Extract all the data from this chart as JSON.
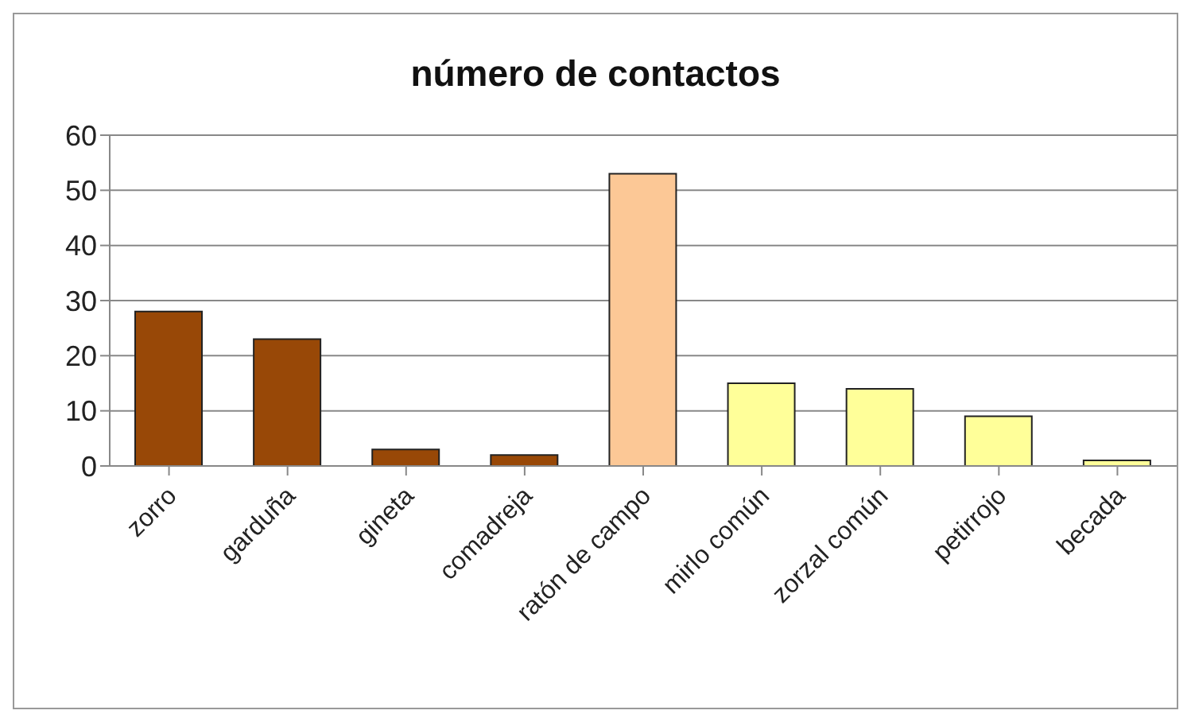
{
  "chart_data": {
    "type": "bar",
    "title": "número de contactos",
    "categories": [
      "zorro",
      "garduña",
      "gineta",
      "comadreja",
      "ratón de campo",
      "mirlo común",
      "zorzal común",
      "petirrojo",
      "becada"
    ],
    "values": [
      28,
      23,
      3,
      2,
      53,
      15,
      14,
      9,
      1
    ],
    "colors": [
      "#984807",
      "#984807",
      "#984807",
      "#984807",
      "#fcc896",
      "#ffff99",
      "#ffff99",
      "#ffff99",
      "#ffff99"
    ],
    "ylim": [
      0,
      60
    ],
    "yticks": [
      0,
      10,
      20,
      30,
      40,
      50,
      60
    ],
    "grid": "y",
    "legend": false
  }
}
